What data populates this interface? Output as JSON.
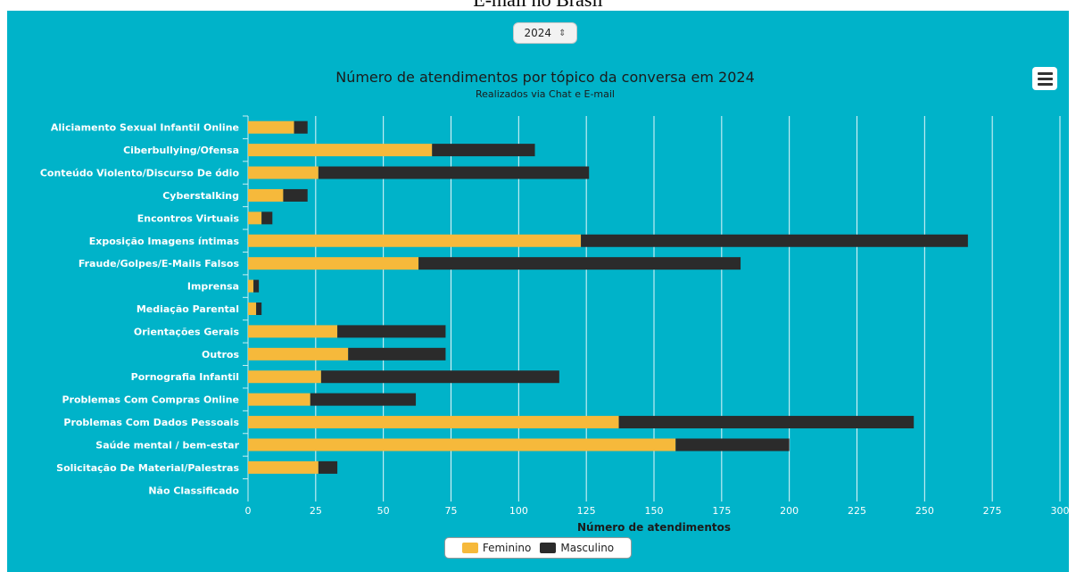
{
  "page": {
    "heading": "E-mail no Brasil"
  },
  "controls": {
    "year_value": "2024"
  },
  "colors": {
    "background": "#00b3c9",
    "feminino": "#f6b93b",
    "masculino": "#2b2b2b",
    "grid": "#e6f7fa",
    "text": "#ffffff"
  },
  "icons": {
    "menu": "hamburger-menu-icon",
    "select": "chevron-up-down-icon"
  },
  "chart_data": {
    "type": "bar",
    "orientation": "horizontal",
    "stacked": true,
    "title": "Número de atendimentos por tópico da conversa em 2024",
    "subtitle": "Realizados via Chat e E-mail",
    "xlabel": "Número de atendimentos",
    "ylabel": "",
    "xlim": [
      0,
      300
    ],
    "xticks": [
      "0",
      "25",
      "50",
      "75",
      "100",
      "125",
      "150",
      "175",
      "200",
      "225",
      "250",
      "275",
      "300"
    ],
    "grid": true,
    "legend_position": "bottom",
    "categories": [
      "Aliciamento Sexual Infantil Online",
      "Ciberbullying/Ofensa",
      "Conteúdo Violento/Discurso De ódio",
      "Cyberstalking",
      "Encontros Virtuais",
      "Exposição Imagens íntimas",
      "Fraude/Golpes/E-Mails Falsos",
      "Imprensa",
      "Mediação Parental",
      "Orientações Gerais",
      "Outros",
      "Pornografia Infantil",
      "Problemas Com Compras Online",
      "Problemas Com Dados Pessoais",
      "Saúde mental / bem-estar",
      "Solicitação De Material/Palestras",
      "Não Classificado"
    ],
    "series": [
      {
        "name": "Feminino",
        "values": [
          17,
          68,
          26,
          13,
          5,
          123,
          63,
          2,
          3,
          33,
          37,
          27,
          23,
          137,
          158,
          26,
          0
        ]
      },
      {
        "name": "Masculino",
        "values": [
          5,
          38,
          100,
          9,
          4,
          143,
          119,
          2,
          2,
          40,
          36,
          88,
          39,
          109,
          42,
          7,
          0
        ]
      }
    ]
  }
}
